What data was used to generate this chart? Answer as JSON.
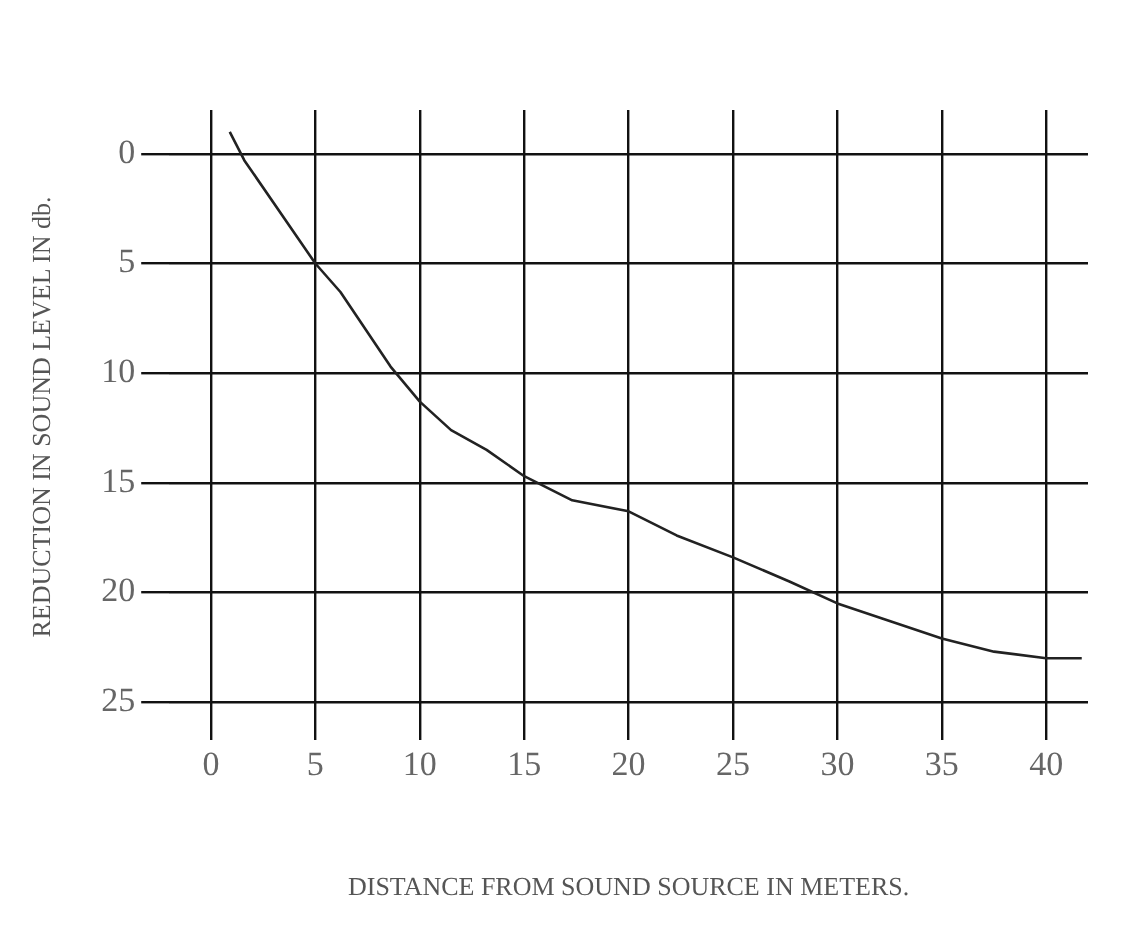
{
  "chart_data": {
    "type": "line",
    "xlabel": "DISTANCE FROM SOUND SOURCE IN METERS.",
    "ylabel": "REDUCTION IN SOUND LEVEL IN db.",
    "x": [
      0.9,
      1.6,
      5,
      6.2,
      8.6,
      10,
      11.5,
      13.2,
      15,
      17.3,
      20,
      22.3,
      25,
      27.7,
      30,
      32.5,
      35,
      37.5,
      40,
      41.7
    ],
    "series": [
      {
        "color": "#222222",
        "values": [
          -1.0,
          0.3,
          5,
          6.3,
          9.7,
          11.3,
          12.6,
          13.5,
          14.7,
          15.8,
          16.3,
          17.4,
          18.4,
          19.5,
          20.5,
          21.3,
          22.1,
          22.7,
          23.0,
          23.0
        ]
      }
    ],
    "xlim": [
      -2,
      42
    ],
    "xticks": [
      0,
      5,
      10,
      15,
      20,
      25,
      30,
      35,
      40
    ],
    "ylim": [
      26,
      -2
    ],
    "yticks": [
      0,
      5,
      10,
      15,
      20,
      25
    ],
    "grid": true,
    "legend": false,
    "marker": "none",
    "line_style": "solid"
  }
}
